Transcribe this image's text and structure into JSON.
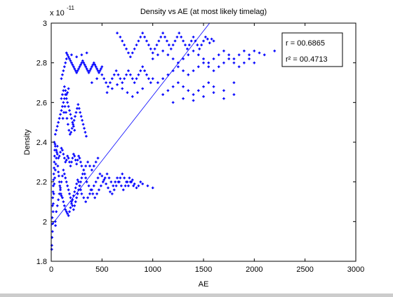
{
  "chart_data": {
    "type": "scatter",
    "title": "Density vs AE (at most likely timelag)",
    "xlabel": "AE",
    "ylabel": "Density",
    "y_exponent_label": "x 10",
    "y_exponent_power": "-11",
    "xlim": [
      0,
      3000
    ],
    "ylim": [
      1.8,
      3.0
    ],
    "xticks": [
      0,
      500,
      1000,
      1500,
      2000,
      2500,
      3000
    ],
    "yticks": [
      1.8,
      2.0,
      2.2,
      2.4,
      2.6,
      2.8,
      3.0
    ],
    "ytick_labels": [
      "1.8",
      "2",
      "2.2",
      "2.4",
      "2.6",
      "2.8",
      "3"
    ],
    "grid": false,
    "marker_color": "#0000ff",
    "line_color": "#0000ff",
    "fit_line": {
      "x": [
        0,
        1560
      ],
      "y": [
        1.98,
        3.0
      ]
    },
    "annotation": {
      "r_label": "r =  00.6865",
      "r2_label": "r² = 00.4713",
      "placement": "top-right"
    },
    "points": [
      [
        10,
        2.02
      ],
      [
        12,
        2.08
      ],
      [
        15,
        2.12
      ],
      [
        18,
        2.15
      ],
      [
        20,
        2.18
      ],
      [
        22,
        2.21
      ],
      [
        25,
        2.24
      ],
      [
        28,
        2.27
      ],
      [
        30,
        2.3
      ],
      [
        33,
        2.33
      ],
      [
        35,
        2.36
      ],
      [
        38,
        2.39
      ],
      [
        40,
        2.0
      ],
      [
        42,
        1.98
      ],
      [
        8,
        1.92
      ],
      [
        6,
        1.88
      ],
      [
        5,
        1.86
      ],
      [
        12,
        1.95
      ],
      [
        15,
        1.99
      ],
      [
        18,
        2.05
      ],
      [
        20,
        2.09
      ],
      [
        25,
        2.14
      ],
      [
        30,
        2.19
      ],
      [
        35,
        2.22
      ],
      [
        40,
        2.26
      ],
      [
        45,
        2.29
      ],
      [
        50,
        2.32
      ],
      [
        55,
        2.35
      ],
      [
        60,
        2.38
      ],
      [
        65,
        2.28
      ],
      [
        70,
        2.25
      ],
      [
        75,
        2.23
      ],
      [
        80,
        2.2
      ],
      [
        85,
        2.18
      ],
      [
        90,
        2.16
      ],
      [
        95,
        2.14
      ],
      [
        100,
        2.13
      ],
      [
        110,
        2.12
      ],
      [
        120,
        2.1
      ],
      [
        130,
        2.08
      ],
      [
        140,
        2.06
      ],
      [
        150,
        2.05
      ],
      [
        160,
        2.04
      ],
      [
        170,
        2.03
      ],
      [
        180,
        2.05
      ],
      [
        190,
        2.07
      ],
      [
        200,
        2.09
      ],
      [
        210,
        2.11
      ],
      [
        220,
        2.13
      ],
      [
        230,
        2.15
      ],
      [
        240,
        2.17
      ],
      [
        250,
        2.19
      ],
      [
        260,
        2.21
      ],
      [
        270,
        2.2
      ],
      [
        280,
        2.18
      ],
      [
        290,
        2.16
      ],
      [
        300,
        2.14
      ],
      [
        320,
        2.12
      ],
      [
        340,
        2.1
      ],
      [
        360,
        2.12
      ],
      [
        380,
        2.14
      ],
      [
        400,
        2.16
      ],
      [
        420,
        2.18
      ],
      [
        440,
        2.2
      ],
      [
        460,
        2.22
      ],
      [
        480,
        2.24
      ],
      [
        500,
        2.23
      ],
      [
        520,
        2.21
      ],
      [
        540,
        2.19
      ],
      [
        560,
        2.17
      ],
      [
        580,
        2.15
      ],
      [
        600,
        2.14
      ],
      [
        620,
        2.16
      ],
      [
        640,
        2.18
      ],
      [
        660,
        2.2
      ],
      [
        680,
        2.22
      ],
      [
        700,
        2.24
      ],
      [
        720,
        2.22
      ],
      [
        740,
        2.2
      ],
      [
        760,
        2.18
      ],
      [
        780,
        2.2
      ],
      [
        800,
        2.21
      ],
      [
        820,
        2.19
      ],
      [
        840,
        2.17
      ],
      [
        860,
        2.18
      ],
      [
        880,
        2.2
      ],
      [
        900,
        2.19
      ],
      [
        950,
        2.18
      ],
      [
        1000,
        2.17
      ],
      [
        50,
        2.05
      ],
      [
        60,
        2.08
      ],
      [
        70,
        2.11
      ],
      [
        80,
        2.14
      ],
      [
        90,
        2.17
      ],
      [
        100,
        2.2
      ],
      [
        110,
        2.23
      ],
      [
        120,
        2.26
      ],
      [
        130,
        2.24
      ],
      [
        140,
        2.22
      ],
      [
        150,
        2.2
      ],
      [
        160,
        2.18
      ],
      [
        170,
        2.16
      ],
      [
        180,
        2.14
      ],
      [
        190,
        2.12
      ],
      [
        200,
        2.1
      ],
      [
        210,
        2.08
      ],
      [
        220,
        2.06
      ],
      [
        230,
        2.08
      ],
      [
        240,
        2.1
      ],
      [
        250,
        2.12
      ],
      [
        260,
        2.14
      ],
      [
        270,
        2.16
      ],
      [
        280,
        2.18
      ],
      [
        290,
        2.2
      ],
      [
        300,
        2.22
      ],
      [
        310,
        2.24
      ],
      [
        320,
        2.26
      ],
      [
        330,
        2.24
      ],
      [
        340,
        2.22
      ],
      [
        350,
        2.2
      ],
      [
        370,
        2.18
      ],
      [
        390,
        2.16
      ],
      [
        410,
        2.14
      ],
      [
        430,
        2.12
      ],
      [
        450,
        2.14
      ],
      [
        470,
        2.16
      ],
      [
        490,
        2.18
      ],
      [
        510,
        2.2
      ],
      [
        530,
        2.22
      ],
      [
        550,
        2.24
      ],
      [
        570,
        2.22
      ],
      [
        590,
        2.2
      ],
      [
        610,
        2.18
      ],
      [
        630,
        2.2
      ],
      [
        650,
        2.22
      ],
      [
        670,
        2.2
      ],
      [
        690,
        2.18
      ],
      [
        710,
        2.16
      ],
      [
        730,
        2.18
      ],
      [
        750,
        2.2
      ],
      [
        770,
        2.22
      ],
      [
        790,
        2.2
      ],
      [
        810,
        2.18
      ],
      [
        30,
        2.4
      ],
      [
        40,
        2.38
      ],
      [
        50,
        2.36
      ],
      [
        60,
        2.34
      ],
      [
        70,
        2.32
      ],
      [
        80,
        2.33
      ],
      [
        90,
        2.35
      ],
      [
        100,
        2.37
      ],
      [
        110,
        2.36
      ],
      [
        120,
        2.34
      ],
      [
        130,
        2.32
      ],
      [
        140,
        2.3
      ],
      [
        150,
        2.31
      ],
      [
        160,
        2.33
      ],
      [
        170,
        2.32
      ],
      [
        180,
        2.3
      ],
      [
        190,
        2.28
      ],
      [
        200,
        2.3
      ],
      [
        210,
        2.32
      ],
      [
        220,
        2.34
      ],
      [
        230,
        2.33
      ],
      [
        240,
        2.31
      ],
      [
        250,
        2.29
      ],
      [
        260,
        2.31
      ],
      [
        270,
        2.33
      ],
      [
        280,
        2.32
      ],
      [
        290,
        2.3
      ],
      [
        300,
        2.28
      ],
      [
        320,
        2.26
      ],
      [
        340,
        2.28
      ],
      [
        360,
        2.3
      ],
      [
        380,
        2.28
      ],
      [
        400,
        2.26
      ],
      [
        420,
        2.28
      ],
      [
        440,
        2.3
      ],
      [
        460,
        2.32
      ],
      [
        40,
        2.44
      ],
      [
        50,
        2.46
      ],
      [
        60,
        2.48
      ],
      [
        70,
        2.5
      ],
      [
        80,
        2.52
      ],
      [
        90,
        2.54
      ],
      [
        100,
        2.56
      ],
      [
        110,
        2.58
      ],
      [
        120,
        2.6
      ],
      [
        130,
        2.62
      ],
      [
        140,
        2.64
      ],
      [
        150,
        2.62
      ],
      [
        160,
        2.6
      ],
      [
        170,
        2.58
      ],
      [
        180,
        2.56
      ],
      [
        190,
        2.54
      ],
      [
        200,
        2.52
      ],
      [
        210,
        2.5
      ],
      [
        220,
        2.48
      ],
      [
        230,
        2.46
      ],
      [
        100,
        2.62
      ],
      [
        110,
        2.64
      ],
      [
        120,
        2.66
      ],
      [
        130,
        2.68
      ],
      [
        140,
        2.66
      ],
      [
        150,
        2.64
      ],
      [
        160,
        2.65
      ],
      [
        170,
        2.67
      ],
      [
        115,
        2.52
      ],
      [
        125,
        2.55
      ],
      [
        135,
        2.58
      ],
      [
        145,
        2.55
      ],
      [
        155,
        2.52
      ],
      [
        165,
        2.49
      ],
      [
        175,
        2.46
      ],
      [
        185,
        2.44
      ],
      [
        195,
        2.45
      ],
      [
        205,
        2.47
      ],
      [
        215,
        2.49
      ],
      [
        225,
        2.51
      ],
      [
        235,
        2.53
      ],
      [
        245,
        2.55
      ],
      [
        255,
        2.57
      ],
      [
        265,
        2.59
      ],
      [
        275,
        2.57
      ],
      [
        285,
        2.55
      ],
      [
        295,
        2.53
      ],
      [
        305,
        2.51
      ],
      [
        315,
        2.49
      ],
      [
        325,
        2.47
      ],
      [
        335,
        2.45
      ],
      [
        345,
        2.43
      ],
      [
        100,
        2.72
      ],
      [
        110,
        2.74
      ],
      [
        120,
        2.76
      ],
      [
        130,
        2.78
      ],
      [
        140,
        2.8
      ],
      [
        150,
        2.82
      ],
      [
        160,
        2.84
      ],
      [
        170,
        2.83
      ],
      [
        180,
        2.82
      ],
      [
        190,
        2.81
      ],
      [
        200,
        2.8
      ],
      [
        210,
        2.79
      ],
      [
        220,
        2.78
      ],
      [
        230,
        2.77
      ],
      [
        240,
        2.76
      ],
      [
        250,
        2.75
      ],
      [
        260,
        2.76
      ],
      [
        270,
        2.77
      ],
      [
        280,
        2.78
      ],
      [
        290,
        2.79
      ],
      [
        300,
        2.8
      ],
      [
        310,
        2.81
      ],
      [
        320,
        2.8
      ],
      [
        330,
        2.79
      ],
      [
        340,
        2.78
      ],
      [
        350,
        2.77
      ],
      [
        360,
        2.76
      ],
      [
        370,
        2.75
      ],
      [
        380,
        2.76
      ],
      [
        390,
        2.77
      ],
      [
        400,
        2.78
      ],
      [
        410,
        2.79
      ],
      [
        420,
        2.8
      ],
      [
        430,
        2.79
      ],
      [
        440,
        2.78
      ],
      [
        450,
        2.77
      ],
      [
        460,
        2.76
      ],
      [
        470,
        2.75
      ],
      [
        480,
        2.76
      ],
      [
        490,
        2.77
      ],
      [
        500,
        2.78
      ],
      [
        150,
        2.85
      ],
      [
        200,
        2.84
      ],
      [
        250,
        2.83
      ],
      [
        300,
        2.84
      ],
      [
        350,
        2.85
      ],
      [
        400,
        2.7
      ],
      [
        450,
        2.72
      ],
      [
        500,
        2.74
      ],
      [
        520,
        2.72
      ],
      [
        540,
        2.7
      ],
      [
        560,
        2.68
      ],
      [
        580,
        2.7
      ],
      [
        600,
        2.72
      ],
      [
        620,
        2.74
      ],
      [
        640,
        2.76
      ],
      [
        660,
        2.74
      ],
      [
        680,
        2.72
      ],
      [
        700,
        2.7
      ],
      [
        720,
        2.72
      ],
      [
        740,
        2.74
      ],
      [
        760,
        2.76
      ],
      [
        780,
        2.74
      ],
      [
        800,
        2.72
      ],
      [
        820,
        2.7
      ],
      [
        840,
        2.72
      ],
      [
        860,
        2.74
      ],
      [
        880,
        2.76
      ],
      [
        900,
        2.78
      ],
      [
        920,
        2.76
      ],
      [
        940,
        2.74
      ],
      [
        960,
        2.72
      ],
      [
        980,
        2.7
      ],
      [
        1000,
        2.72
      ],
      [
        550,
        2.65
      ],
      [
        600,
        2.67
      ],
      [
        650,
        2.69
      ],
      [
        700,
        2.67
      ],
      [
        750,
        2.65
      ],
      [
        800,
        2.63
      ],
      [
        850,
        2.65
      ],
      [
        900,
        2.67
      ],
      [
        650,
        2.95
      ],
      [
        680,
        2.93
      ],
      [
        700,
        2.91
      ],
      [
        720,
        2.89
      ],
      [
        740,
        2.87
      ],
      [
        760,
        2.85
      ],
      [
        780,
        2.83
      ],
      [
        800,
        2.85
      ],
      [
        820,
        2.87
      ],
      [
        840,
        2.89
      ],
      [
        860,
        2.91
      ],
      [
        880,
        2.93
      ],
      [
        900,
        2.95
      ],
      [
        920,
        2.93
      ],
      [
        940,
        2.91
      ],
      [
        960,
        2.89
      ],
      [
        980,
        2.87
      ],
      [
        1000,
        2.85
      ],
      [
        1020,
        2.87
      ],
      [
        1040,
        2.89
      ],
      [
        1060,
        2.91
      ],
      [
        1080,
        2.93
      ],
      [
        1100,
        2.95
      ],
      [
        1120,
        2.93
      ],
      [
        1140,
        2.91
      ],
      [
        1160,
        2.89
      ],
      [
        1180,
        2.87
      ],
      [
        1200,
        2.89
      ],
      [
        1220,
        2.91
      ],
      [
        1240,
        2.93
      ],
      [
        1260,
        2.95
      ],
      [
        1280,
        2.93
      ],
      [
        1300,
        2.91
      ],
      [
        1320,
        2.89
      ],
      [
        1340,
        2.87
      ],
      [
        1360,
        2.89
      ],
      [
        1380,
        2.91
      ],
      [
        1400,
        2.93
      ],
      [
        1420,
        2.91
      ],
      [
        1440,
        2.89
      ],
      [
        1460,
        2.87
      ],
      [
        1480,
        2.89
      ],
      [
        1500,
        2.91
      ],
      [
        1520,
        2.93
      ],
      [
        1540,
        2.92
      ],
      [
        1560,
        2.9
      ],
      [
        1580,
        2.92
      ],
      [
        1600,
        2.91
      ],
      [
        1000,
        2.82
      ],
      [
        1050,
        2.84
      ],
      [
        1100,
        2.86
      ],
      [
        1150,
        2.84
      ],
      [
        1200,
        2.82
      ],
      [
        1250,
        2.8
      ],
      [
        1300,
        2.82
      ],
      [
        1350,
        2.84
      ],
      [
        1400,
        2.86
      ],
      [
        1450,
        2.84
      ],
      [
        1500,
        2.82
      ],
      [
        1550,
        2.8
      ],
      [
        1600,
        2.82
      ],
      [
        1650,
        2.84
      ],
      [
        1700,
        2.86
      ],
      [
        1750,
        2.84
      ],
      [
        1800,
        2.82
      ],
      [
        1850,
        2.84
      ],
      [
        1900,
        2.86
      ],
      [
        1950,
        2.84
      ],
      [
        2000,
        2.86
      ],
      [
        2050,
        2.85
      ],
      [
        2100,
        2.84
      ],
      [
        2200,
        2.86
      ],
      [
        2300,
        2.85
      ],
      [
        2400,
        2.84
      ],
      [
        2500,
        2.85
      ],
      [
        2600,
        2.84
      ],
      [
        1050,
        2.7
      ],
      [
        1100,
        2.72
      ],
      [
        1150,
        2.74
      ],
      [
        1200,
        2.76
      ],
      [
        1250,
        2.78
      ],
      [
        1300,
        2.76
      ],
      [
        1350,
        2.74
      ],
      [
        1400,
        2.76
      ],
      [
        1450,
        2.78
      ],
      [
        1500,
        2.8
      ],
      [
        1550,
        2.78
      ],
      [
        1600,
        2.76
      ],
      [
        1650,
        2.78
      ],
      [
        1700,
        2.8
      ],
      [
        1750,
        2.82
      ],
      [
        1800,
        2.8
      ],
      [
        1850,
        2.78
      ],
      [
        1900,
        2.8
      ],
      [
        1950,
        2.82
      ],
      [
        2000,
        2.8
      ],
      [
        1100,
        2.64
      ],
      [
        1150,
        2.66
      ],
      [
        1200,
        2.68
      ],
      [
        1250,
        2.7
      ],
      [
        1300,
        2.68
      ],
      [
        1350,
        2.66
      ],
      [
        1400,
        2.64
      ],
      [
        1450,
        2.66
      ],
      [
        1500,
        2.68
      ],
      [
        1550,
        2.7
      ],
      [
        1600,
        2.68
      ],
      [
        1700,
        2.66
      ],
      [
        1800,
        2.7
      ],
      [
        1200,
        2.6
      ],
      [
        1300,
        2.62
      ],
      [
        1400,
        2.61
      ],
      [
        1500,
        2.63
      ],
      [
        1600,
        2.65
      ],
      [
        1700,
        2.62
      ],
      [
        1800,
        2.64
      ]
    ]
  }
}
